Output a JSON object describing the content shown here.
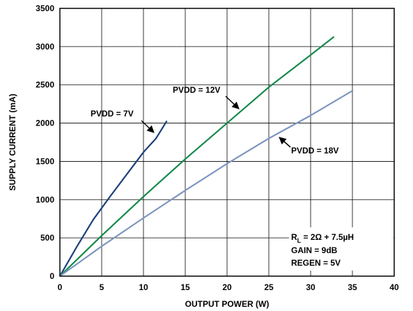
{
  "chart_data": {
    "type": "line",
    "xlabel": "OUTPUT POWER (W)",
    "ylabel": "SUPPLY CURRENT (mA)",
    "xlim": [
      0,
      40
    ],
    "ylim": [
      0,
      3500
    ],
    "xticks": [
      0,
      5,
      10,
      15,
      20,
      25,
      30,
      35,
      40
    ],
    "yticks": [
      0,
      500,
      1000,
      1500,
      2000,
      2500,
      3000,
      3500
    ],
    "grid": true,
    "series": [
      {
        "name": "PVDD = 7V",
        "color": "#1c3f7a",
        "x": [
          0,
          2,
          4,
          6,
          8,
          10,
          11.5,
          12.8
        ],
        "y": [
          0,
          380,
          740,
          1040,
          1330,
          1620,
          1800,
          2030
        ]
      },
      {
        "name": "PVDD = 12V",
        "color": "#158a4a",
        "x": [
          0,
          5,
          10,
          15,
          20,
          25,
          30,
          32.8
        ],
        "y": [
          0,
          530,
          1040,
          1530,
          2000,
          2470,
          2890,
          3130
        ]
      },
      {
        "name": "PVDD = 18V",
        "color": "#7e96bf",
        "x": [
          0,
          5,
          10,
          15,
          20,
          25,
          30,
          35.1
        ],
        "y": [
          0,
          390,
          760,
          1120,
          1470,
          1800,
          2100,
          2430
        ]
      }
    ],
    "annotation": {
      "rl_prefix": "R",
      "rl_sub": "L",
      "rl_rest": " = 2Ω + 7.5µH",
      "gain": "GAIN = 9dB",
      "regen": "REGEN = 5V"
    }
  }
}
